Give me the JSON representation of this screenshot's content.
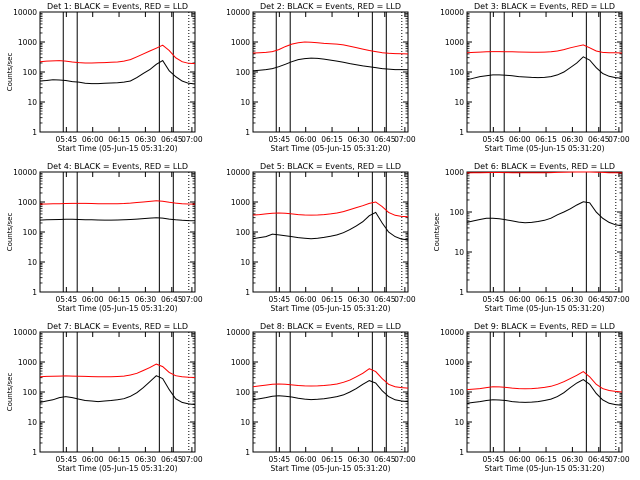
{
  "colors": {
    "events": "#000000",
    "lld": "#ff0000",
    "axes": "#000000"
  },
  "chart_data": [
    {
      "type": "line",
      "title": "Det 1: BLACK = Events, RED = LLD",
      "xlabel": "Start Time (05-Jun-15 05:31:20)",
      "ylabel": "Counts/sec",
      "yscale": "log",
      "ylim": [
        1,
        10000
      ],
      "xlim": [
        0.0,
        100.0
      ],
      "xtick_labels": [
        "05:45",
        "06:00",
        "06:15",
        "06:30",
        "06:45",
        "07:00"
      ],
      "ytick_labels": [
        "1",
        "10",
        "100",
        "1000",
        "10000"
      ],
      "series": [
        {
          "values": [
            50,
            52,
            55,
            54,
            52,
            48,
            46,
            42,
            41,
            41,
            42,
            43,
            44,
            46,
            50,
            65,
            90,
            120,
            180,
            240,
            110,
            70,
            50,
            42,
            40
          ]
        },
        {
          "values": [
            220,
            230,
            235,
            240,
            230,
            215,
            205,
            200,
            200,
            202,
            205,
            210,
            215,
            230,
            260,
            320,
            400,
            500,
            620,
            780,
            520,
            300,
            220,
            195,
            190
          ]
        }
      ]
    },
    {
      "type": "line",
      "title": "Det 2: BLACK = Events, RED = LLD",
      "xlabel": "Start Time (05-Jun-15 05:31:20)",
      "ylabel": "",
      "yscale": "log",
      "ylim": [
        1,
        10000
      ],
      "xlim": [
        0.0,
        100.0
      ],
      "xtick_labels": [
        "05:45",
        "06:00",
        "06:15",
        "06:30",
        "06:45",
        "07:00"
      ],
      "ytick_labels": [
        "1",
        "10",
        "100",
        "1000",
        "10000"
      ],
      "series": [
        {
          "values": [
            110,
            115,
            120,
            130,
            150,
            180,
            220,
            260,
            280,
            290,
            285,
            270,
            250,
            230,
            210,
            190,
            175,
            160,
            150,
            140,
            130,
            125,
            120,
            120,
            118
          ]
        },
        {
          "values": [
            430,
            440,
            450,
            480,
            560,
            700,
            850,
            950,
            1000,
            980,
            950,
            900,
            880,
            850,
            800,
            720,
            650,
            580,
            520,
            480,
            440,
            420,
            410,
            405,
            400
          ]
        }
      ]
    },
    {
      "type": "line",
      "title": "Det 3: BLACK = Events, RED = LLD",
      "xlabel": "Start Time (05-Jun-15 05:31:20)",
      "ylabel": "",
      "yscale": "log",
      "ylim": [
        1,
        10000
      ],
      "xlim": [
        0.0,
        100.0
      ],
      "xtick_labels": [
        "05:45",
        "06:00",
        "06:15",
        "06:30",
        "06:45",
        "07:00"
      ],
      "ytick_labels": [
        "1",
        "10",
        "100",
        "1000",
        "10000"
      ],
      "series": [
        {
          "values": [
            55,
            62,
            70,
            75,
            80,
            80,
            78,
            75,
            70,
            68,
            66,
            65,
            66,
            70,
            80,
            100,
            140,
            200,
            320,
            250,
            140,
            90,
            72,
            65,
            62
          ]
        },
        {
          "values": [
            440,
            450,
            460,
            470,
            480,
            480,
            475,
            470,
            465,
            460,
            455,
            455,
            460,
            470,
            500,
            560,
            640,
            720,
            800,
            640,
            500,
            450,
            440,
            435,
            430
          ]
        }
      ]
    },
    {
      "type": "line",
      "title": "Det 4: BLACK = Events, RED = LLD",
      "xlabel": "Start Time (05-Jun-15 05:31:20)",
      "ylabel": "Counts/sec",
      "yscale": "log",
      "ylim": [
        1,
        10000
      ],
      "xlim": [
        0.0,
        100.0
      ],
      "xtick_labels": [
        "05:45",
        "06:00",
        "06:15",
        "06:30",
        "06:45",
        "07:00"
      ],
      "ytick_labels": [
        "1",
        "10",
        "100",
        "1000",
        "10000"
      ],
      "series": [
        {
          "values": [
            250,
            255,
            260,
            262,
            265,
            265,
            262,
            258,
            255,
            252,
            250,
            250,
            252,
            256,
            262,
            270,
            280,
            290,
            300,
            290,
            270,
            255,
            245,
            240,
            238
          ]
        },
        {
          "values": [
            850,
            860,
            870,
            880,
            890,
            900,
            900,
            895,
            890,
            880,
            875,
            870,
            875,
            890,
            920,
            960,
            1000,
            1050,
            1100,
            1060,
            980,
            920,
            880,
            860,
            850
          ]
        }
      ]
    },
    {
      "type": "line",
      "title": "Det 5: BLACK = Events, RED = LLD",
      "xlabel": "Start Time (05-Jun-15 05:31:20)",
      "ylabel": "",
      "yscale": "log",
      "ylim": [
        1,
        10000
      ],
      "xlim": [
        0.0,
        100.0
      ],
      "xtick_labels": [
        "05:45",
        "06:00",
        "06:15",
        "06:30",
        "06:45",
        "07:00"
      ],
      "ytick_labels": [
        "1",
        "10",
        "100",
        "1000",
        "10000"
      ],
      "series": [
        {
          "values": [
            60,
            65,
            70,
            85,
            80,
            75,
            70,
            65,
            62,
            60,
            62,
            66,
            72,
            80,
            95,
            120,
            160,
            220,
            350,
            450,
            200,
            100,
            70,
            58,
            55
          ]
        },
        {
          "values": [
            370,
            380,
            400,
            420,
            430,
            420,
            400,
            380,
            370,
            365,
            370,
            380,
            400,
            430,
            480,
            560,
            650,
            750,
            900,
            1000,
            700,
            450,
            360,
            330,
            320
          ]
        }
      ]
    },
    {
      "type": "line",
      "title": "Det 6: BLACK = Events, RED = LLD",
      "xlabel": "Start Time (05-Jun-15 05:31:20)",
      "ylabel": "Counts/sec",
      "yscale": "log",
      "ylim": [
        1,
        1000
      ],
      "xlim": [
        0.0,
        100.0
      ],
      "xtick_labels": [
        "05:45",
        "06:00",
        "06:15",
        "06:30",
        "06:45",
        "07:00"
      ],
      "ytick_labels": [
        "1",
        "10",
        "100",
        "1000"
      ],
      "series": [
        {
          "values": [
            55,
            60,
            65,
            70,
            70,
            68,
            64,
            60,
            56,
            54,
            55,
            58,
            62,
            70,
            85,
            100,
            120,
            150,
            180,
            170,
            100,
            70,
            55,
            48,
            45
          ]
        },
        {
          "values": [
            950,
            955,
            960,
            965,
            970,
            970,
            965,
            960,
            958,
            955,
            955,
            958,
            962,
            968,
            975,
            985,
            995,
            1000,
            1000,
            1000,
            990,
            975,
            962,
            955,
            950
          ]
        }
      ]
    },
    {
      "type": "line",
      "title": "Det 7: BLACK = Events, RED = LLD",
      "xlabel": "Start Time (05-Jun-15 05:31:20)",
      "ylabel": "Counts/sec",
      "yscale": "log",
      "ylim": [
        1,
        10000
      ],
      "xlim": [
        0.0,
        100.0
      ],
      "xtick_labels": [
        "05:45",
        "06:00",
        "06:15",
        "06:30",
        "06:45",
        "07:00"
      ],
      "ytick_labels": [
        "1",
        "10",
        "100",
        "1000",
        "10000"
      ],
      "series": [
        {
          "values": [
            45,
            50,
            55,
            65,
            70,
            65,
            58,
            52,
            50,
            48,
            50,
            52,
            55,
            60,
            72,
            95,
            140,
            220,
            350,
            280,
            120,
            60,
            45,
            40,
            38
          ]
        },
        {
          "values": [
            320,
            330,
            335,
            340,
            345,
            340,
            335,
            330,
            325,
            322,
            320,
            322,
            328,
            340,
            370,
            420,
            520,
            650,
            850,
            700,
            450,
            350,
            320,
            310,
            305
          ]
        }
      ]
    },
    {
      "type": "line",
      "title": "Det 8: BLACK = Events, RED = LLD",
      "xlabel": "Start Time (05-Jun-15 05:31:20)",
      "ylabel": "",
      "yscale": "log",
      "ylim": [
        1,
        10000
      ],
      "xlim": [
        0.0,
        100.0
      ],
      "xtick_labels": [
        "05:45",
        "06:00",
        "06:15",
        "06:30",
        "06:45",
        "07:00"
      ],
      "ytick_labels": [
        "1",
        "10",
        "100",
        "1000",
        "10000"
      ],
      "series": [
        {
          "values": [
            55,
            60,
            65,
            72,
            75,
            72,
            68,
            62,
            58,
            56,
            57,
            60,
            64,
            70,
            80,
            100,
            130,
            180,
            240,
            200,
            110,
            70,
            55,
            50,
            48
          ]
        },
        {
          "values": [
            150,
            160,
            170,
            180,
            185,
            180,
            172,
            165,
            160,
            158,
            160,
            165,
            172,
            185,
            210,
            250,
            320,
            420,
            600,
            480,
            280,
            180,
            150,
            140,
            135
          ]
        }
      ]
    },
    {
      "type": "line",
      "title": "Det 9: BLACK = Events, RED = LLD",
      "xlabel": "Start Time (05-Jun-15 05:31:20)",
      "ylabel": "",
      "yscale": "log",
      "ylim": [
        1,
        10000
      ],
      "xlim": [
        0.0,
        100.0
      ],
      "xtick_labels": [
        "05:45",
        "06:00",
        "06:15",
        "06:30",
        "06:45",
        "07:00"
      ],
      "ytick_labels": [
        "1",
        "10",
        "100",
        "1000",
        "10000"
      ],
      "series": [
        {
          "values": [
            42,
            45,
            48,
            52,
            55,
            54,
            52,
            48,
            46,
            45,
            46,
            48,
            52,
            58,
            70,
            95,
            140,
            200,
            260,
            180,
            90,
            55,
            42,
            38,
            36
          ]
        },
        {
          "values": [
            120,
            125,
            130,
            140,
            150,
            148,
            142,
            135,
            130,
            128,
            130,
            135,
            142,
            155,
            180,
            220,
            280,
            360,
            480,
            320,
            180,
            130,
            112,
            105,
            100
          ]
        }
      ]
    }
  ]
}
